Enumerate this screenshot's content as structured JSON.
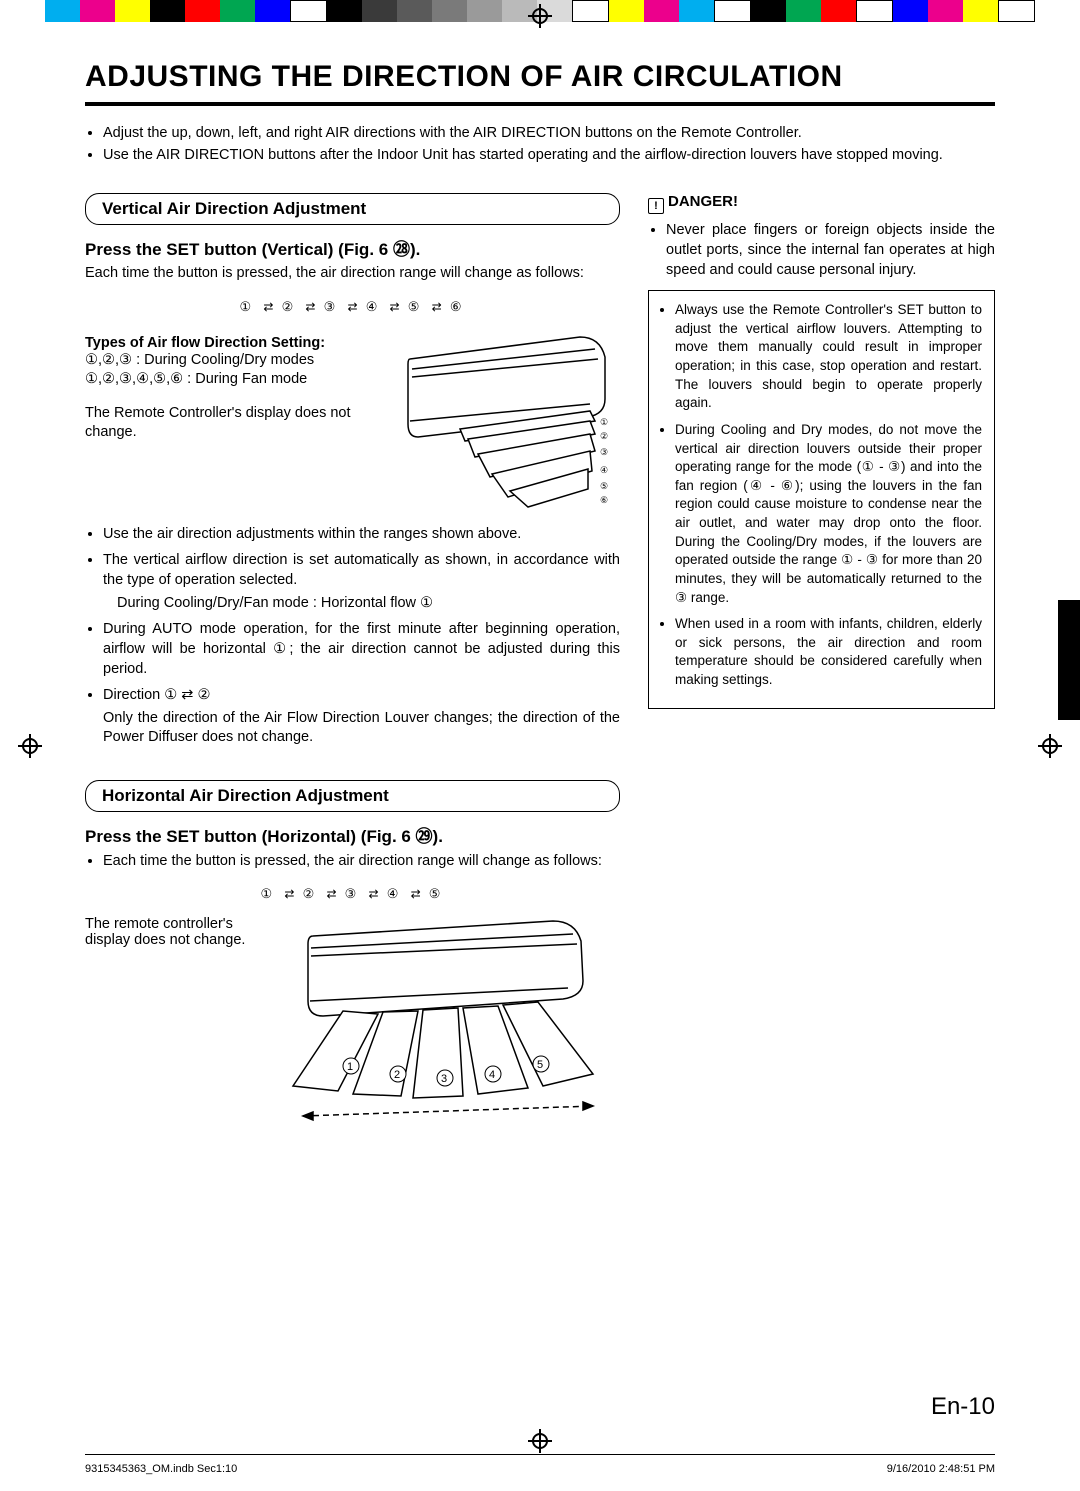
{
  "colorbar": [
    "#00aeef",
    "#ec008c",
    "#ffff00",
    "#000000",
    "#ff0000",
    "#00a651",
    "#0000ff",
    "#ffffff",
    "#000000",
    "#3a3a3a",
    "#5a5a5a",
    "#7a7a7a",
    "#9a9a9a",
    "#bababa",
    "#dadada",
    "#ffffff",
    "#ffff00",
    "#ec008c",
    "#00aeef",
    "#ffffff",
    "#000000",
    "#00a651",
    "#ff0000",
    "#ffffff",
    "#0000ff",
    "#ec008c",
    "#ffff00",
    "#ffffff"
  ],
  "title": "ADJUSTING THE DIRECTION OF AIR CIRCULATION",
  "intro": [
    "Adjust the up, down, left, and right AIR directions with the AIR DIRECTION buttons on the Remote Controller.",
    "Use the AIR DIRECTION buttons after the Indoor Unit has started operating and the airflow-direction louvers have stopped moving."
  ],
  "vertical": {
    "heading": "Vertical Air Direction Adjustment",
    "press": "Press the SET button (Vertical) (Fig. 6 ㉘).",
    "each_time": "Each time the button is pressed, the air direction range will change as follows:",
    "seq": [
      "①",
      "②",
      "③",
      "④",
      "⑤",
      "⑥"
    ],
    "types_heading": "Types of Air flow Direction Setting:",
    "types_line1": "①,②,③ : During Cooling/Dry modes",
    "types_line2": "①,②,③,④,⑤,⑥ : During Fan mode",
    "display_note": "The Remote Controller's display does not change.",
    "bullets": [
      "Use the air direction adjustments within the ranges shown above.",
      "The vertical airflow direction is set automatically as shown, in accordance with the type of operation selected.",
      "During AUTO mode operation, for the first minute after beginning operation, airflow will be horizontal ①; the air direction cannot be adjusted during this period.",
      "Direction ① ⇄ ②"
    ],
    "bullet2_indent": "During Cooling/Dry/Fan mode : Horizontal flow ①",
    "bullet4_sub": "Only the direction of the Air Flow Direction Louver changes; the direction of the Power Diffuser does not change."
  },
  "danger": {
    "heading": "DANGER!",
    "items": [
      "Never place fingers or foreign objects inside the outlet ports, since the internal fan operates at high speed and could cause personal injury."
    ]
  },
  "box": {
    "items": [
      "Always use the Remote Controller's SET button to adjust the vertical airflow louvers. Attempting to move them manually could result in improper operation; in this case, stop operation and restart. The louvers should begin to operate properly again.",
      "During Cooling and Dry modes, do not move the vertical air direction louvers outside their proper operating range for the mode (① - ③) and into the fan region (④ - ⑥); using the louvers in the fan region could cause moisture to condense near the air outlet, and water may drop onto the floor. During the Cooling/Dry modes, if the louvers are operated outside the range ① - ③ for more than 20 minutes, they will be automatically returned to the ③ range.",
      "When used in a room with infants, children, elderly or sick persons, the air direction and room temperature should be considered carefully when making settings."
    ]
  },
  "horizontal": {
    "heading": "Horizontal Air Direction Adjustment",
    "press": "Press the SET button (Horizontal) (Fig. 6 ㉙).",
    "each_time": "Each time the button is pressed, the air direction range will change as follows:",
    "seq": [
      "①",
      "②",
      "③",
      "④",
      "⑤"
    ],
    "display_note": "The remote controller's display does not change."
  },
  "page_num": "En-10",
  "footer": {
    "left": "9315345363_OM.indb   Sec1:10",
    "right": "9/16/2010   2:48:51 PM"
  }
}
